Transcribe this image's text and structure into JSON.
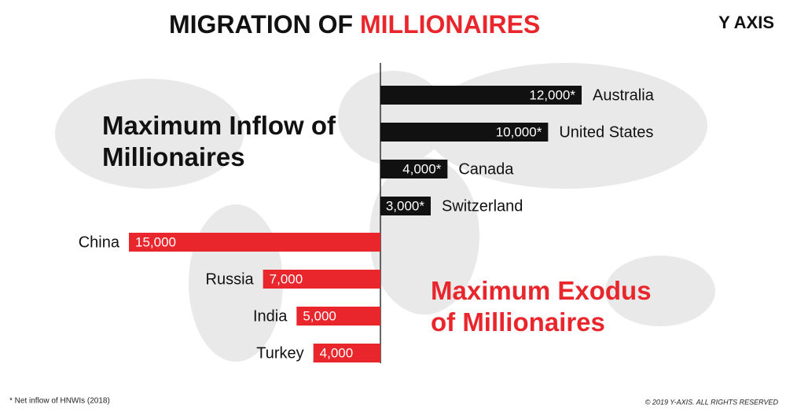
{
  "header": {
    "title_part1": "MIGRATION OF",
    "title_part2": "MILLIONAIRES",
    "logo": "Y AXIS"
  },
  "chart_data": [
    {
      "type": "bar",
      "direction": "right",
      "title": "Maximum Inflow of Millionaires",
      "categories": [
        "Australia",
        "United States",
        "Canada",
        "Switzerland"
      ],
      "values": [
        12000,
        10000,
        4000,
        3000
      ],
      "value_labels": [
        "12,000*",
        "10,000*",
        "4,000*",
        "3,000*"
      ],
      "color": "#111111"
    },
    {
      "type": "bar",
      "direction": "left",
      "title": "Maximum Exodus of Millionaires",
      "categories": [
        "China",
        "Russia",
        "India",
        "Turkey"
      ],
      "values": [
        15000,
        7000,
        5000,
        4000
      ],
      "value_labels": [
        "15,000",
        "7,000",
        "5,000",
        "4,000"
      ],
      "color": "#e8262c"
    }
  ],
  "footer": {
    "note": "* Net inflow of HNWIs (2018)",
    "copyright": "© 2019 Y-AXIS. ALL RIGHTS RESERVED"
  }
}
